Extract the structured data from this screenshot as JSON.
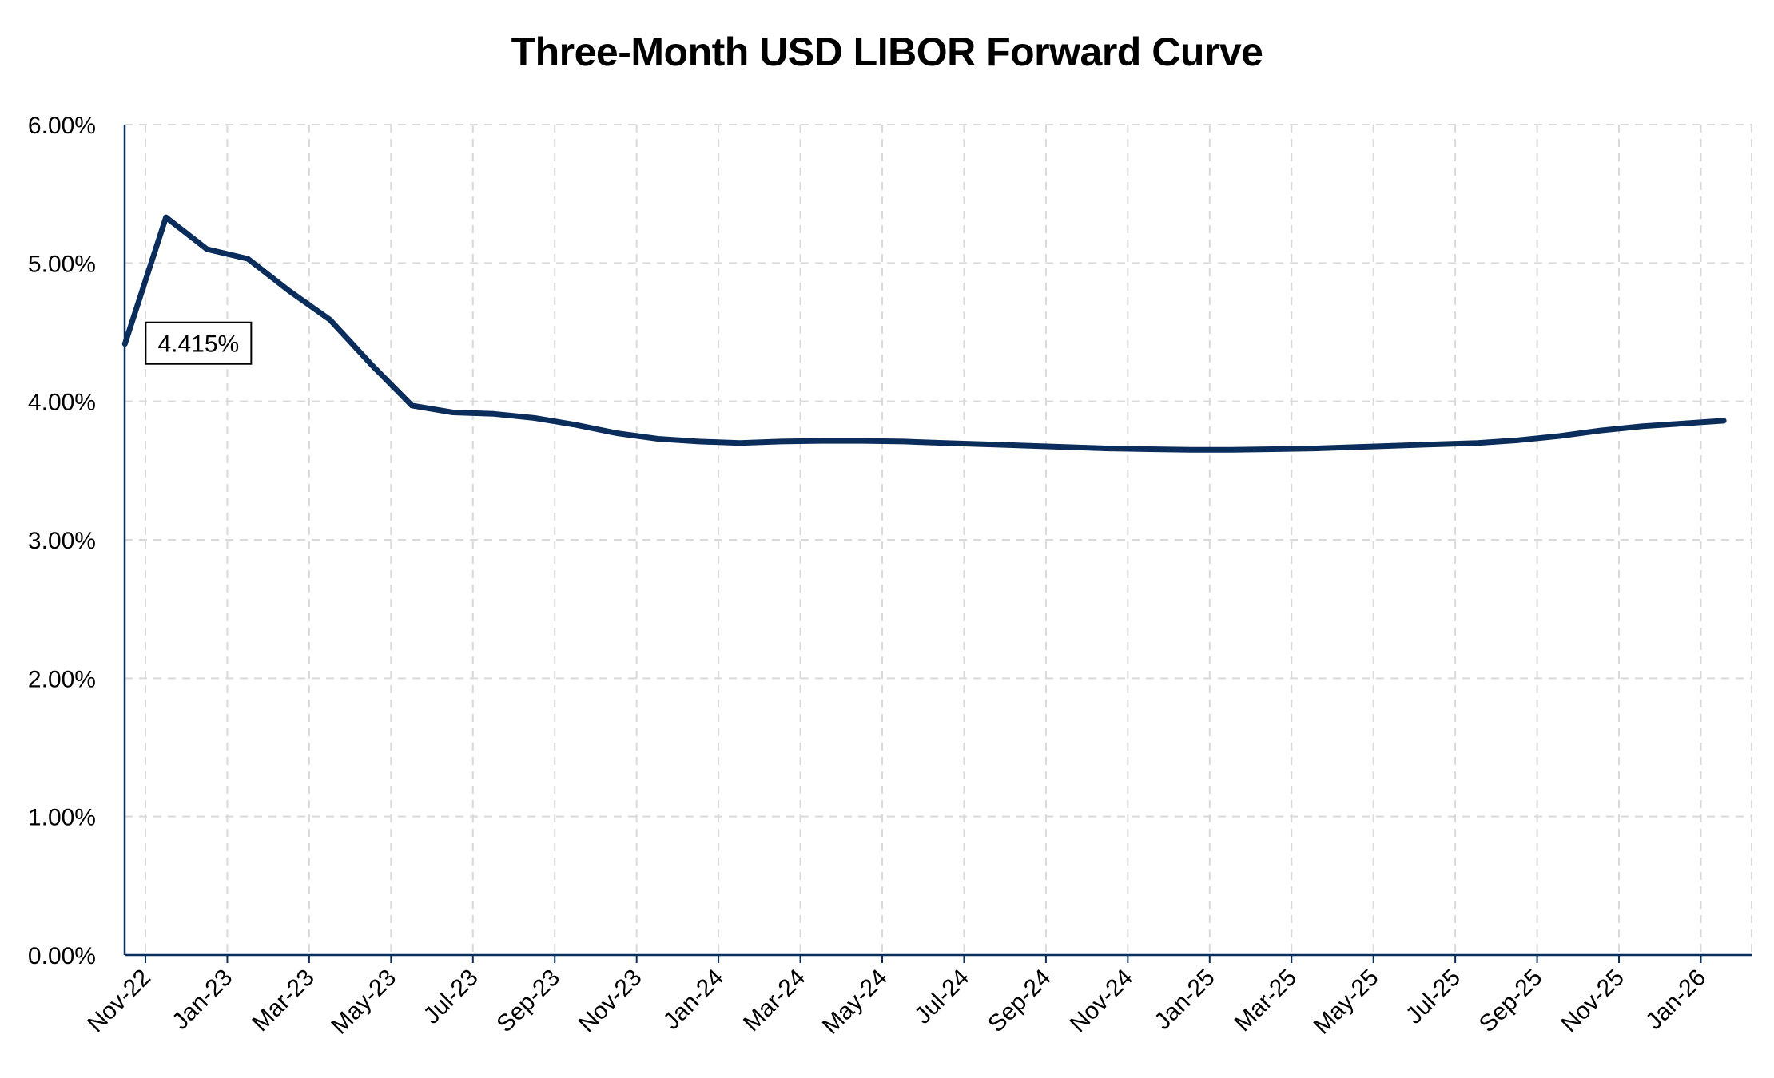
{
  "chart_data": {
    "type": "line",
    "title": "Three-Month USD LIBOR Forward Curve",
    "xlabel": "",
    "ylabel": "",
    "ylim": [
      0,
      6
    ],
    "y_ticks": [
      "0.00%",
      "1.00%",
      "2.00%",
      "3.00%",
      "4.00%",
      "5.00%",
      "6.00%"
    ],
    "x_tick_labels": [
      "Nov-22",
      "Jan-23",
      "Mar-23",
      "May-23",
      "Jul-23",
      "Sep-23",
      "Nov-23",
      "Jan-24",
      "Mar-24",
      "May-24",
      "Jul-24",
      "Sep-24",
      "Nov-24",
      "Jan-25",
      "Mar-25",
      "May-25",
      "Jul-25",
      "Sep-25",
      "Nov-25",
      "Jan-26"
    ],
    "grid": true,
    "line_color": "#0b2d5b",
    "series": [
      {
        "x": [
          "Nov-22",
          "Dec-22",
          "Jan-23",
          "Feb-23",
          "Mar-23",
          "Apr-23",
          "May-23",
          "Jun-23",
          "Jul-23",
          "Aug-23",
          "Sep-23",
          "Oct-23",
          "Nov-23",
          "Dec-23",
          "Jan-24",
          "Feb-24",
          "Mar-24",
          "Apr-24",
          "May-24",
          "Jun-24",
          "Jul-24",
          "Aug-24",
          "Sep-24",
          "Oct-24",
          "Nov-24",
          "Dec-24",
          "Jan-25",
          "Feb-25",
          "Mar-25",
          "Apr-25",
          "May-25",
          "Jun-25",
          "Jul-25",
          "Aug-25",
          "Sep-25",
          "Oct-25",
          "Nov-25",
          "Dec-25",
          "Jan-26",
          "Feb-26"
        ],
        "values": [
          4.415,
          5.33,
          5.1,
          5.03,
          4.8,
          4.59,
          4.27,
          3.97,
          3.92,
          3.91,
          3.88,
          3.83,
          3.77,
          3.73,
          3.71,
          3.7,
          3.71,
          3.715,
          3.715,
          3.71,
          3.7,
          3.69,
          3.68,
          3.67,
          3.66,
          3.655,
          3.65,
          3.65,
          3.655,
          3.66,
          3.67,
          3.68,
          3.69,
          3.7,
          3.72,
          3.75,
          3.79,
          3.82,
          3.84,
          3.86
        ]
      }
    ],
    "annotation": {
      "text": "4.415%",
      "x": "Nov-22"
    }
  }
}
